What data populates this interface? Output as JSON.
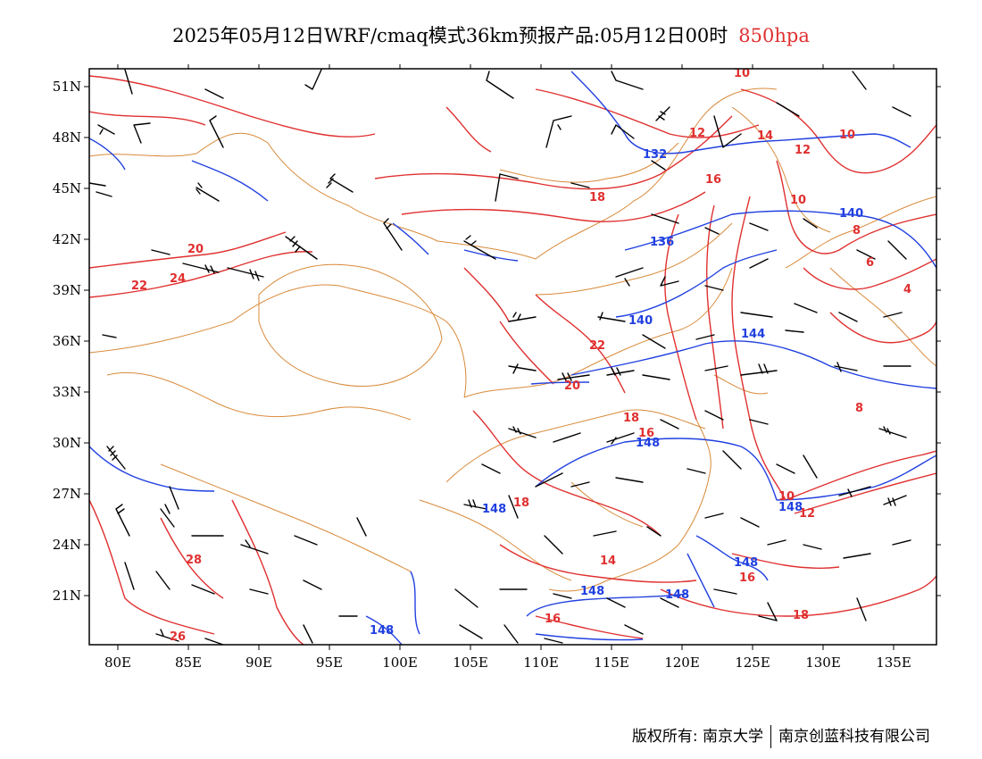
{
  "title": {
    "main": "2025年05月12日WRF/cmaq模式36km预报产品:05月12日00时",
    "level": "850hpa",
    "level_color": "#e03030"
  },
  "axes": {
    "lon_labels": [
      "80E",
      "85E",
      "90E",
      "95E",
      "100E",
      "105E",
      "110E",
      "115E",
      "120E",
      "125E",
      "130E",
      "135E"
    ],
    "lat_labels": [
      "51N",
      "48N",
      "45N",
      "42N",
      "39N",
      "36N",
      "33N",
      "30N",
      "27N",
      "24N",
      "21N"
    ]
  },
  "colors": {
    "temperature_contour": "#e03030",
    "geopotential_contour": "#2040e0",
    "boundary": "#d98a3a",
    "wind_barb": "#000000"
  },
  "temperature_labels": [
    "10",
    "12",
    "14",
    "12",
    "10",
    "16",
    "18",
    "10",
    "8",
    "6",
    "4",
    "20",
    "22",
    "24",
    "22",
    "20",
    "18",
    "16",
    "8",
    "10",
    "12",
    "28",
    "14",
    "16",
    "16",
    "18",
    "26",
    "18"
  ],
  "height_labels": [
    "132",
    "136",
    "140",
    "140",
    "144",
    "148",
    "148",
    "148",
    "148",
    "148",
    "148",
    "148"
  ],
  "credit": {
    "left": "版权所有: 南京大学",
    "right": "南京创蓝科技有限公司"
  }
}
